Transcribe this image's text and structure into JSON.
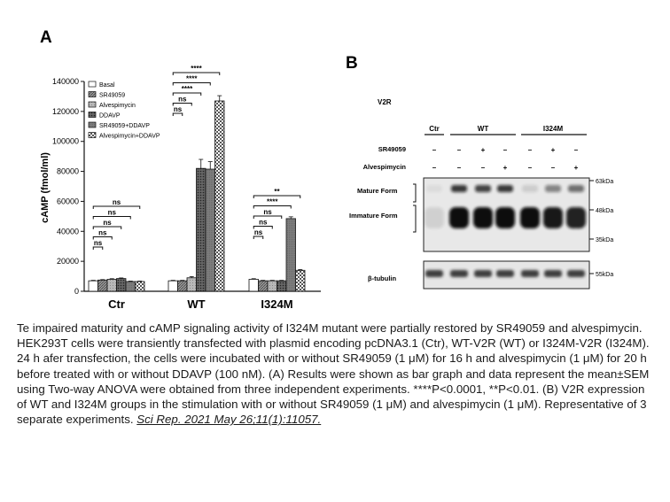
{
  "panel_a_letter": "A",
  "panel_b_letter": "B",
  "chart_data": {
    "type": "bar",
    "ylabel": "cAMP (fmol/ml)",
    "xlabel": "",
    "ylim": [
      0,
      140000
    ],
    "yticks": [
      0,
      20000,
      40000,
      60000,
      80000,
      100000,
      120000,
      140000
    ],
    "ytick_labels": [
      "0",
      "20000",
      "40000",
      "60000",
      "80000",
      "100000",
      "120000",
      "140000"
    ],
    "categories": [
      "Ctr",
      "WT",
      "I324M"
    ],
    "legend_position": "top-left",
    "series": [
      {
        "name": "Basal",
        "pattern": "white",
        "values": [
          7000,
          7000,
          8000
        ],
        "errors": [
          300,
          300,
          400
        ]
      },
      {
        "name": "SR49059",
        "pattern": "hatch",
        "values": [
          7500,
          7000,
          7000
        ],
        "errors": [
          300,
          300,
          300
        ]
      },
      {
        "name": "Alvespimycin",
        "pattern": "gray",
        "values": [
          8000,
          9000,
          7000
        ],
        "errors": [
          400,
          800,
          300
        ]
      },
      {
        "name": "DDAVP",
        "pattern": "dots",
        "values": [
          8500,
          82000,
          7000
        ],
        "errors": [
          400,
          6000,
          300
        ]
      },
      {
        "name": "SR49059+DDAVP",
        "pattern": "darkgray",
        "values": [
          6500,
          81500,
          48500
        ],
        "errors": [
          300,
          5000,
          1200
        ]
      },
      {
        "name": "Alvespimycin+DDAVP",
        "pattern": "check",
        "values": [
          6500,
          127000,
          14000
        ],
        "errors": [
          300,
          3500,
          500
        ]
      }
    ],
    "significance": [
      {
        "group": 0,
        "from": 0,
        "to": 1,
        "label": "ns"
      },
      {
        "group": 0,
        "from": 0,
        "to": 2,
        "label": "ns"
      },
      {
        "group": 0,
        "from": 0,
        "to": 3,
        "label": "ns"
      },
      {
        "group": 0,
        "from": 0,
        "to": 4,
        "label": "ns"
      },
      {
        "group": 0,
        "from": 0,
        "to": 5,
        "label": "ns"
      },
      {
        "group": 1,
        "from": 0,
        "to": 1,
        "label": "ns"
      },
      {
        "group": 1,
        "from": 0,
        "to": 2,
        "label": "ns"
      },
      {
        "group": 1,
        "from": 0,
        "to": 3,
        "label": "****"
      },
      {
        "group": 1,
        "from": 0,
        "to": 4,
        "label": "****"
      },
      {
        "group": 1,
        "from": 0,
        "to": 5,
        "label": "****"
      },
      {
        "group": 2,
        "from": 0,
        "to": 1,
        "label": "ns"
      },
      {
        "group": 2,
        "from": 0,
        "to": 2,
        "label": "ns"
      },
      {
        "group": 2,
        "from": 0,
        "to": 3,
        "label": "ns"
      },
      {
        "group": 2,
        "from": 0,
        "to": 4,
        "label": "****"
      },
      {
        "group": 2,
        "from": 0,
        "to": 5,
        "label": "**"
      }
    ]
  },
  "blot": {
    "title": "V2R",
    "groups": [
      "Ctr",
      "WT",
      "I324M"
    ],
    "row_labels": [
      "SR49059",
      "Alvespimycin"
    ],
    "sr49059": [
      "–",
      "–",
      "+",
      "–",
      "–",
      "+",
      "–"
    ],
    "alvespimycin": [
      "–",
      "–",
      "–",
      "+",
      "–",
      "–",
      "+"
    ],
    "mature_label": "Mature Form",
    "immature_label": "Immature Form",
    "tubulin_label": "β-tubulin",
    "kda_labels": [
      "63kDa",
      "48kDa",
      "35kDa"
    ],
    "tubulin_kda": "55kDa",
    "mature_intensity": [
      0.05,
      0.8,
      0.75,
      0.8,
      0.12,
      0.45,
      0.55
    ],
    "immature_intensity": [
      0.1,
      1.0,
      1.0,
      1.0,
      1.0,
      0.95,
      0.9
    ]
  },
  "caption": {
    "text": "Te impaired maturity and cAMP signaling activity of I324M mutant were partially restored by SR49059 and alvespimycin. HEK293T cells were transiently transfected with plasmid encoding pcDNA3.1 (Ctr), WT-V2R (WT) or I324M-V2R (I324M). 24 h afer transfection, the cells were incubated with or without SR49059 (1 μM) for 16 h and alvespimycin (1 μM) for 20 h before treated with or without DDAVP (100 nM). (A) Results were shown as bar graph and data represent the mean±SEM using Two-way ANOVA were obtained from three independent experiments. ****P<0.0001, **P<0.01. (B) V2R expression of WT and I324M groups in the stimulation with or without SR49059 (1 μM) and alvespimycin (1 μM). Representative of 3 separate experiments.",
    "citation": "Sci Rep. 2021 May 26;11(1):11057."
  }
}
